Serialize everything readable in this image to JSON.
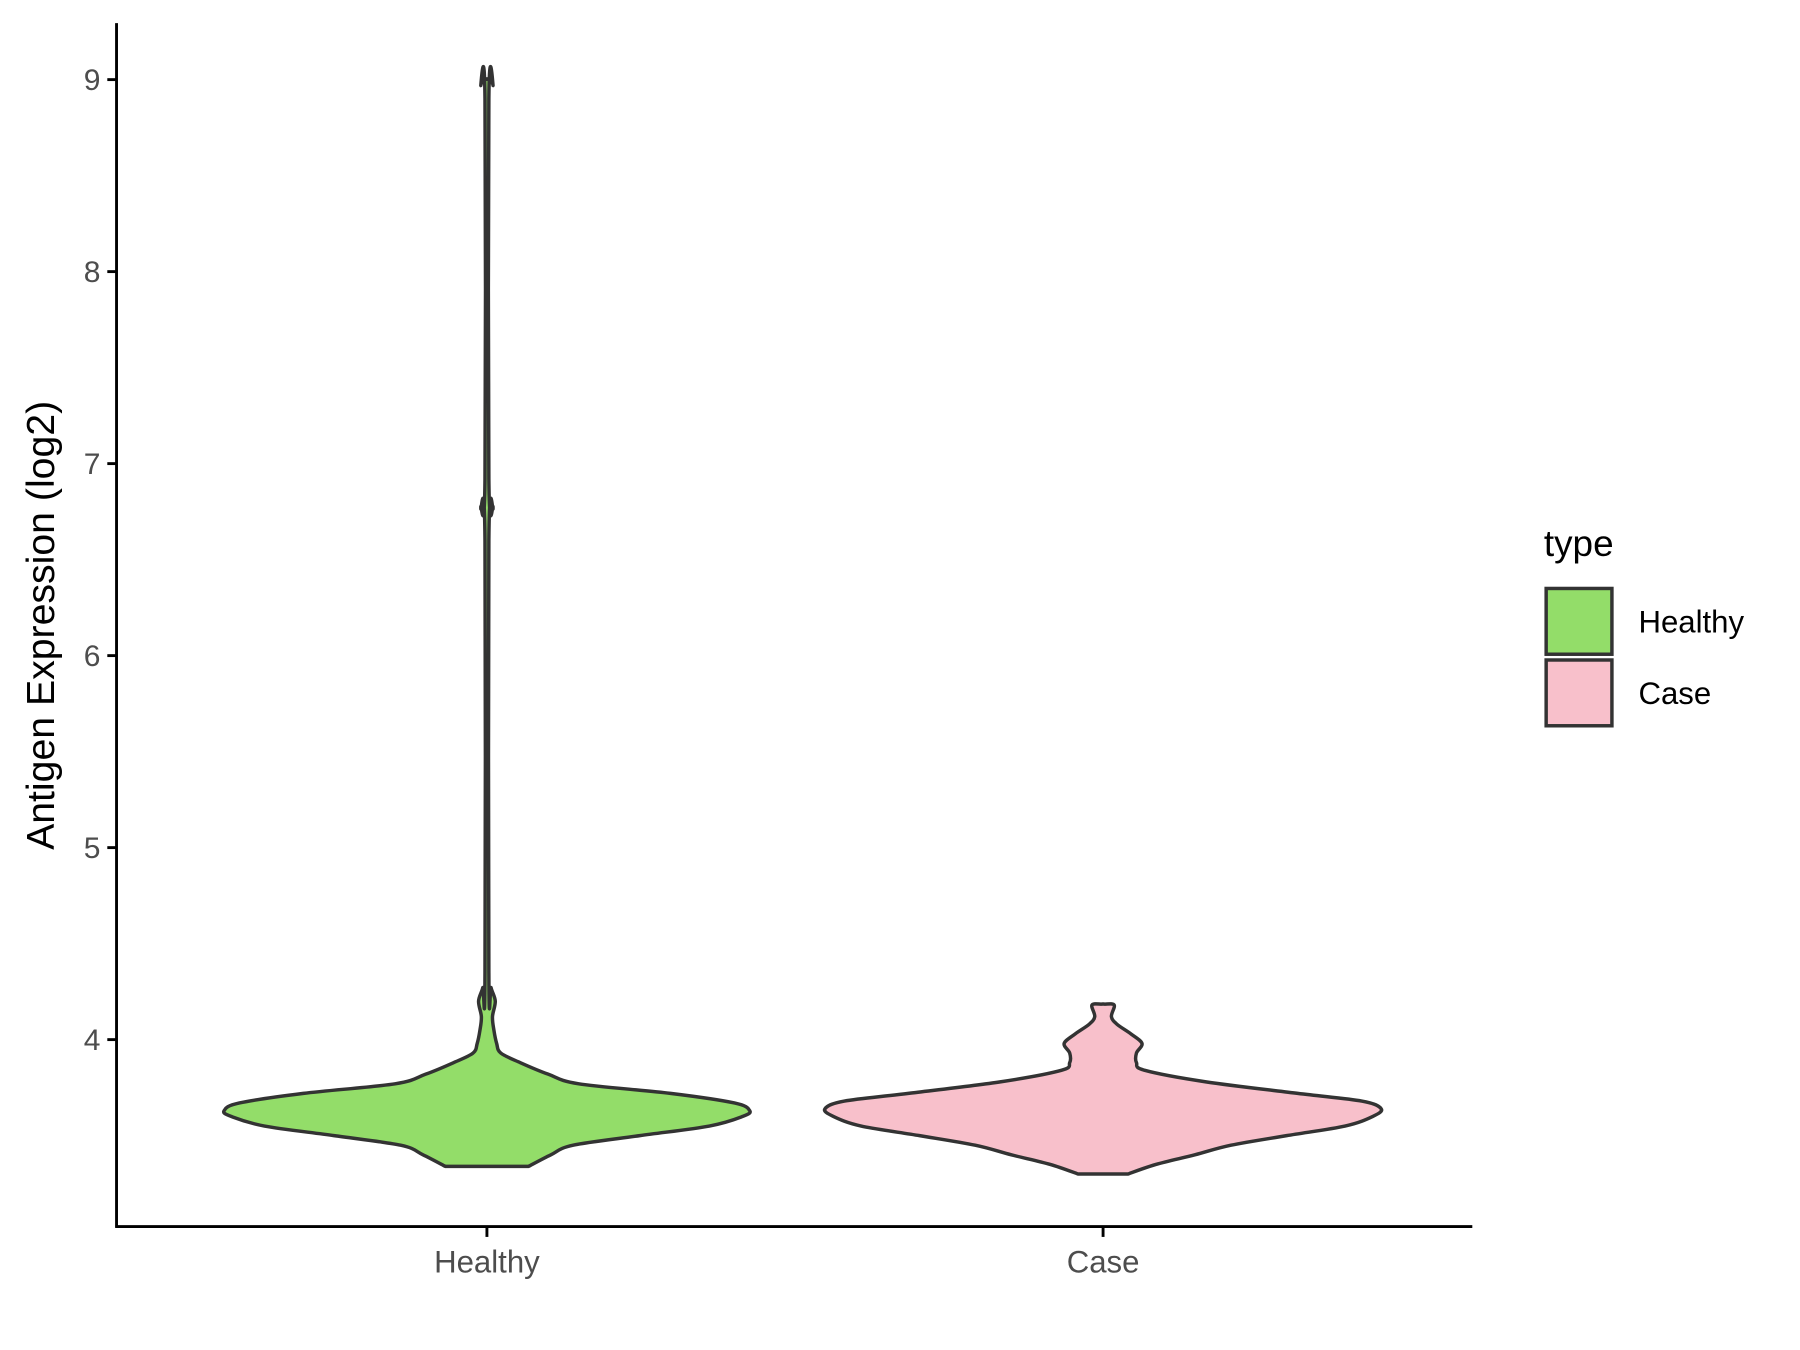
{
  "chart_data": {
    "type": "violin",
    "ylabel": "Antigen Expression (log2)",
    "xlabel": "",
    "categories": [
      "Healthy",
      "Case"
    ],
    "yticks": [
      4,
      5,
      6,
      7,
      8,
      9
    ],
    "ylim": [
      3.05,
      9.3
    ],
    "grid": false,
    "legend": {
      "title": "type",
      "placement": "right",
      "entries": [
        "Healthy",
        "Case"
      ]
    },
    "colors": {
      "Healthy": "#93DD69",
      "Case": "#F8C0CB",
      "outline": "#333333"
    },
    "series": [
      {
        "name": "Healthy",
        "density_profile": [
          [
            3.34,
            0.15
          ],
          [
            3.4,
            0.23
          ],
          [
            3.45,
            0.31
          ],
          [
            3.5,
            0.55
          ],
          [
            3.55,
            0.8
          ],
          [
            3.6,
            0.92
          ],
          [
            3.63,
            0.945
          ],
          [
            3.67,
            0.89
          ],
          [
            3.72,
            0.66
          ],
          [
            3.77,
            0.33
          ],
          [
            3.82,
            0.22
          ],
          [
            3.88,
            0.12
          ],
          [
            3.93,
            0.05
          ],
          [
            3.98,
            0.035
          ],
          [
            4.05,
            0.025
          ],
          [
            4.12,
            0.02
          ],
          [
            4.2,
            0.03
          ],
          [
            4.27,
            0.015
          ],
          [
            4.35,
            0.007
          ],
          [
            6.6,
            0.007
          ],
          [
            6.77,
            0.022
          ],
          [
            6.92,
            0.007
          ],
          [
            8.9,
            0.007
          ],
          [
            8.97,
            0.022
          ],
          [
            9.0,
            0.0
          ]
        ]
      },
      {
        "name": "Case",
        "density_profile": [
          [
            3.3,
            0.09
          ],
          [
            3.35,
            0.19
          ],
          [
            3.4,
            0.33
          ],
          [
            3.45,
            0.46
          ],
          [
            3.5,
            0.66
          ],
          [
            3.55,
            0.87
          ],
          [
            3.6,
            0.97
          ],
          [
            3.64,
            1.0
          ],
          [
            3.68,
            0.93
          ],
          [
            3.72,
            0.7
          ],
          [
            3.78,
            0.37
          ],
          [
            3.84,
            0.15
          ],
          [
            3.88,
            0.12
          ],
          [
            3.93,
            0.12
          ],
          [
            3.98,
            0.14
          ],
          [
            4.03,
            0.1
          ],
          [
            4.08,
            0.05
          ],
          [
            4.12,
            0.03
          ],
          [
            4.18,
            0.04
          ],
          [
            4.185,
            0.0
          ]
        ]
      }
    ]
  }
}
